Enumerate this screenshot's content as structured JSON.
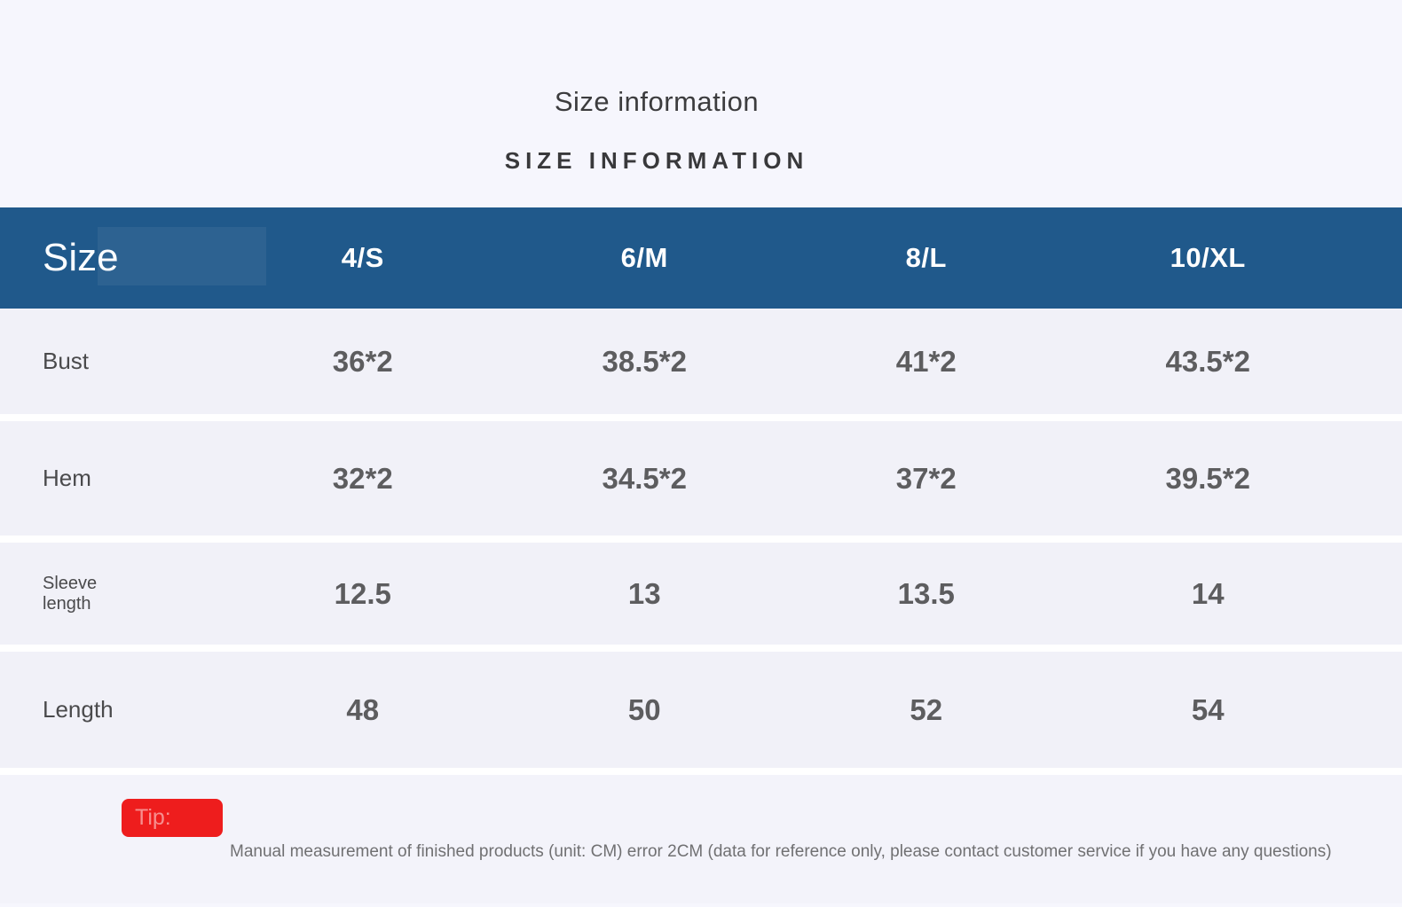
{
  "page": {
    "title": "Size information",
    "subtitle": "SIZE INFORMATION"
  },
  "table": {
    "header": {
      "label": "Size",
      "columns": [
        "4/S",
        "6/M",
        "8/L",
        "10/XL"
      ]
    },
    "rows": [
      {
        "label": "Bust",
        "values": [
          "36*2",
          "38.5*2",
          "41*2",
          "43.5*2"
        ]
      },
      {
        "label": "Hem",
        "values": [
          "32*2",
          "34.5*2",
          "37*2",
          "39.5*2"
        ]
      },
      {
        "label": "Sleeve length",
        "values": [
          "12.5",
          "13",
          "13.5",
          "14"
        ]
      },
      {
        "label": "Length",
        "values": [
          "48",
          "50",
          "52",
          "54"
        ]
      }
    ]
  },
  "tip": {
    "badge_label": "Tip:",
    "text": "Manual measurement of finished products (unit: CM) error 2CM (data for reference only, please contact customer service if you have any questions)"
  },
  "colors": {
    "header_blue": "#20598b",
    "tip_red": "#ee1d1d",
    "page_background": "#f6f6fd",
    "row_background": "#f1f1f8",
    "value_text": "#5d5d5f"
  },
  "chart_data": {
    "type": "table",
    "title": "Size information",
    "subtitle": "SIZE INFORMATION",
    "columns": [
      "Size",
      "4/S",
      "6/M",
      "8/L",
      "10/XL"
    ],
    "rows": [
      [
        "Bust",
        "36*2",
        "38.5*2",
        "41*2",
        "43.5*2"
      ],
      [
        "Hem",
        "32*2",
        "34.5*2",
        "37*2",
        "39.5*2"
      ],
      [
        "Sleeve length",
        "12.5",
        "13",
        "13.5",
        "14"
      ],
      [
        "Length",
        "48",
        "50",
        "52",
        "54"
      ]
    ],
    "unit": "CM",
    "note": "Manual measurement of finished products (unit: CM) error 2CM (data for reference only, please contact customer service if you have any questions)"
  }
}
